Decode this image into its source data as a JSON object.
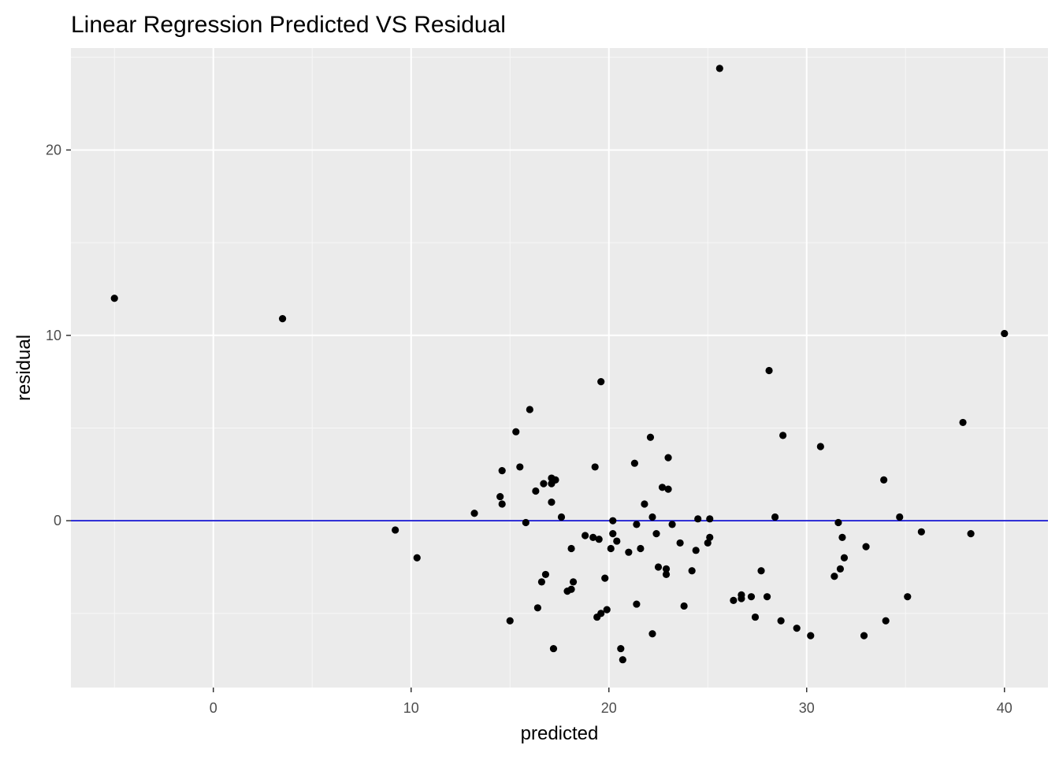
{
  "chart_data": {
    "type": "scatter",
    "title": "Linear Regression Predicted VS Residual",
    "xlabel": "predicted",
    "ylabel": "residual",
    "xlim": [
      -7.2,
      42.2
    ],
    "ylim": [
      -9.0,
      25.5
    ],
    "x_ticks": [
      0,
      10,
      20,
      30,
      40
    ],
    "y_ticks": [
      0,
      10,
      20
    ],
    "grid": true,
    "background_color": "#ebebeb",
    "point_color": "#000000",
    "reference_line": {
      "y": 0,
      "color": "#0000cd"
    },
    "points": [
      {
        "x": -5.0,
        "y": 12.0
      },
      {
        "x": 3.5,
        "y": 10.9
      },
      {
        "x": 9.2,
        "y": -0.5
      },
      {
        "x": 10.3,
        "y": -2.0
      },
      {
        "x": 13.2,
        "y": 0.4
      },
      {
        "x": 14.5,
        "y": 1.3
      },
      {
        "x": 14.6,
        "y": 0.9
      },
      {
        "x": 14.6,
        "y": 2.7
      },
      {
        "x": 15.0,
        "y": -5.4
      },
      {
        "x": 15.3,
        "y": 4.8
      },
      {
        "x": 15.5,
        "y": 2.9
      },
      {
        "x": 15.8,
        "y": -0.1
      },
      {
        "x": 16.0,
        "y": 6.0
      },
      {
        "x": 16.3,
        "y": 1.6
      },
      {
        "x": 16.4,
        "y": -4.7
      },
      {
        "x": 16.6,
        "y": -3.3
      },
      {
        "x": 16.7,
        "y": 2.0
      },
      {
        "x": 16.8,
        "y": -2.9
      },
      {
        "x": 17.1,
        "y": 1.0
      },
      {
        "x": 17.1,
        "y": 2.0
      },
      {
        "x": 17.1,
        "y": 2.3
      },
      {
        "x": 17.2,
        "y": -6.9
      },
      {
        "x": 17.3,
        "y": 2.2
      },
      {
        "x": 17.6,
        "y": 0.2
      },
      {
        "x": 17.9,
        "y": -3.8
      },
      {
        "x": 18.1,
        "y": -1.5
      },
      {
        "x": 18.1,
        "y": -3.7
      },
      {
        "x": 18.2,
        "y": -3.3
      },
      {
        "x": 18.8,
        "y": -0.8
      },
      {
        "x": 19.2,
        "y": -0.9
      },
      {
        "x": 19.3,
        "y": 2.9
      },
      {
        "x": 19.4,
        "y": -5.2
      },
      {
        "x": 19.5,
        "y": -1.0
      },
      {
        "x": 19.6,
        "y": 7.5
      },
      {
        "x": 19.6,
        "y": -5.0
      },
      {
        "x": 19.8,
        "y": -3.1
      },
      {
        "x": 19.9,
        "y": -4.8
      },
      {
        "x": 20.1,
        "y": -1.5
      },
      {
        "x": 20.2,
        "y": -0.7
      },
      {
        "x": 20.2,
        "y": 0.0
      },
      {
        "x": 20.4,
        "y": -1.1
      },
      {
        "x": 20.6,
        "y": -6.9
      },
      {
        "x": 20.7,
        "y": -7.5
      },
      {
        "x": 21.0,
        "y": -1.7
      },
      {
        "x": 21.3,
        "y": 3.1
      },
      {
        "x": 21.4,
        "y": -0.2
      },
      {
        "x": 21.4,
        "y": -4.5
      },
      {
        "x": 21.6,
        "y": -1.5
      },
      {
        "x": 21.8,
        "y": 0.9
      },
      {
        "x": 22.1,
        "y": 4.5
      },
      {
        "x": 22.2,
        "y": -6.1
      },
      {
        "x": 22.2,
        "y": 0.2
      },
      {
        "x": 22.4,
        "y": -0.7
      },
      {
        "x": 22.5,
        "y": -2.5
      },
      {
        "x": 22.7,
        "y": 1.8
      },
      {
        "x": 22.9,
        "y": -2.6
      },
      {
        "x": 22.9,
        "y": -2.9
      },
      {
        "x": 23.0,
        "y": 3.4
      },
      {
        "x": 23.0,
        "y": 1.7
      },
      {
        "x": 23.2,
        "y": -0.2
      },
      {
        "x": 23.6,
        "y": -1.2
      },
      {
        "x": 23.8,
        "y": -4.6
      },
      {
        "x": 24.2,
        "y": -2.7
      },
      {
        "x": 24.4,
        "y": -1.6
      },
      {
        "x": 24.5,
        "y": 0.1
      },
      {
        "x": 25.0,
        "y": -1.2
      },
      {
        "x": 25.1,
        "y": -0.9
      },
      {
        "x": 25.1,
        "y": 0.1
      },
      {
        "x": 25.6,
        "y": 24.4
      },
      {
        "x": 26.3,
        "y": -4.3
      },
      {
        "x": 26.7,
        "y": -4.0
      },
      {
        "x": 26.7,
        "y": -4.2
      },
      {
        "x": 27.2,
        "y": -4.1
      },
      {
        "x": 27.4,
        "y": -5.2
      },
      {
        "x": 27.7,
        "y": -2.7
      },
      {
        "x": 28.0,
        "y": -4.1
      },
      {
        "x": 28.1,
        "y": 8.1
      },
      {
        "x": 28.4,
        "y": 0.2
      },
      {
        "x": 28.7,
        "y": -5.4
      },
      {
        "x": 28.8,
        "y": 4.6
      },
      {
        "x": 29.5,
        "y": -5.8
      },
      {
        "x": 30.2,
        "y": -6.2
      },
      {
        "x": 30.7,
        "y": 4.0
      },
      {
        "x": 31.4,
        "y": -3.0
      },
      {
        "x": 31.6,
        "y": -0.1
      },
      {
        "x": 31.7,
        "y": -2.6
      },
      {
        "x": 31.8,
        "y": -0.9
      },
      {
        "x": 31.9,
        "y": -2.0
      },
      {
        "x": 32.9,
        "y": -6.2
      },
      {
        "x": 33.0,
        "y": -1.4
      },
      {
        "x": 33.9,
        "y": 2.2
      },
      {
        "x": 34.0,
        "y": -5.4
      },
      {
        "x": 34.7,
        "y": 0.2
      },
      {
        "x": 35.1,
        "y": -4.1
      },
      {
        "x": 35.8,
        "y": -0.6
      },
      {
        "x": 37.9,
        "y": 5.3
      },
      {
        "x": 38.3,
        "y": -0.7
      },
      {
        "x": 40.0,
        "y": 10.1
      }
    ]
  }
}
